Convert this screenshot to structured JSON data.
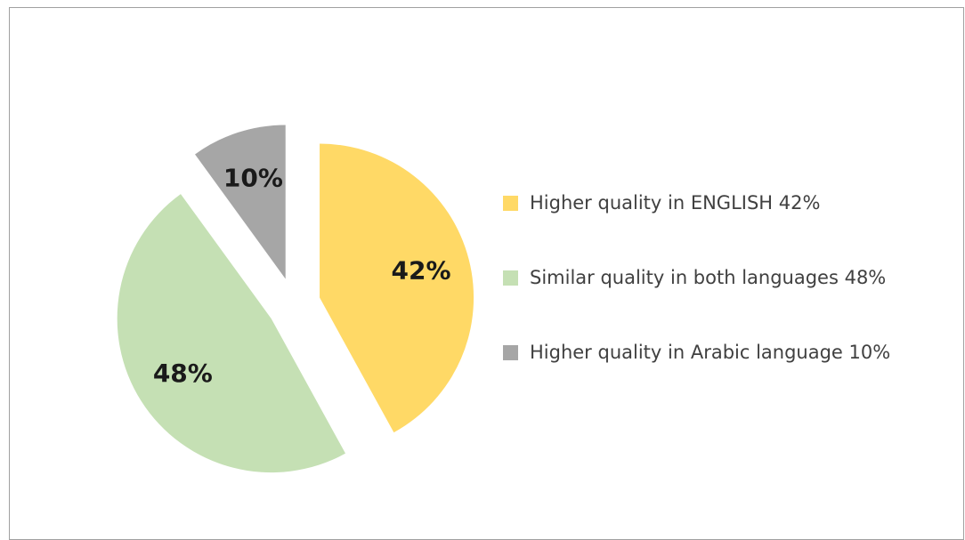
{
  "chart_data": {
    "type": "pie",
    "categories": [
      "Higher quality in ENGLISH 42%",
      "Similar quality in both languages 48%",
      "Higher quality in Arabic language 10%"
    ],
    "values": [
      42,
      48,
      10
    ],
    "value_labels": [
      "42%",
      "48%",
      "10%"
    ],
    "colors": [
      "#ffd966",
      "#c5e0b4",
      "#a6a6a6"
    ],
    "legend": "right"
  }
}
